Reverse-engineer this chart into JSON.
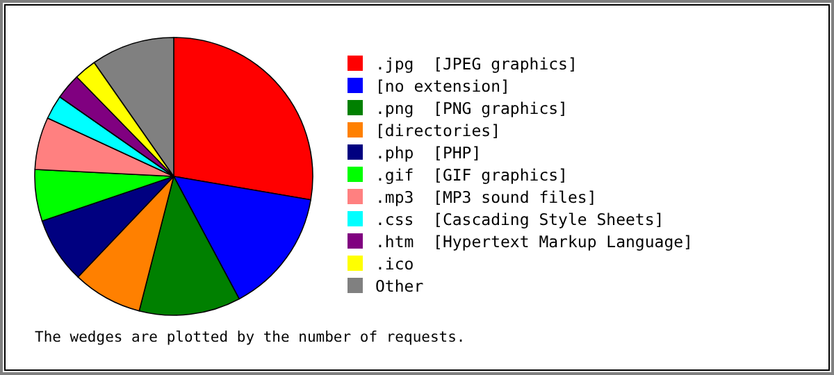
{
  "chart_data": {
    "type": "pie",
    "categories": [
      ".jpg  [JPEG graphics]",
      "[no extension]",
      ".png  [PNG graphics]",
      "[directories]",
      ".php  [PHP]",
      ".gif  [GIF graphics]",
      ".mp3  [MP3 sound files]",
      ".css  [Cascading Style Sheets]",
      ".htm  [Hypertext Markup Language]",
      ".ico",
      "Other"
    ],
    "values": [
      27.7,
      14.5,
      11.8,
      8.1,
      7.7,
      6.0,
      6.1,
      2.8,
      3.0,
      2.6,
      9.7
    ],
    "colors": [
      "#ff0000",
      "#0000ff",
      "#008000",
      "#ff8000",
      "#000080",
      "#00ff00",
      "#ff8080",
      "#00ffff",
      "#800080",
      "#ffff00",
      "#808080"
    ],
    "legend": "right",
    "annotations": [
      "The wedges are plotted by the number of requests."
    ]
  }
}
